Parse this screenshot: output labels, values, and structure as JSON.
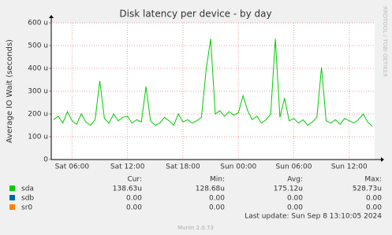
{
  "chart_data": {
    "type": "line",
    "title": "Disk latency per device - by day",
    "y_label": "Average IO Wait (seconds)",
    "side_text": "RRDTOOL / TOBI OETIKER",
    "categories": [
      null,
      null,
      null,
      null,
      "Sat 06:00",
      null,
      null,
      null,
      null,
      null,
      null,
      null,
      null,
      null,
      null,
      null,
      "Sat 12:00",
      null,
      null,
      null,
      null,
      null,
      null,
      null,
      null,
      null,
      null,
      null,
      "Sat 18:00",
      null,
      null,
      null,
      null,
      null,
      null,
      null,
      null,
      null,
      null,
      null,
      "Sun 00:00",
      null,
      null,
      null,
      null,
      null,
      null,
      null,
      null,
      null,
      null,
      null,
      "Sun 06:00",
      null,
      null,
      null,
      null,
      null,
      null,
      null,
      null,
      null,
      null,
      null,
      "Sun 12:00",
      null,
      null,
      null,
      null,
      null
    ],
    "series": [
      {
        "color": "#00cc00",
        "values": [
          175,
          190,
          160,
          210,
          170,
          155,
          200,
          165,
          150,
          175,
          345,
          180,
          160,
          200,
          170,
          185,
          190,
          160,
          175,
          165,
          320,
          170,
          150,
          160,
          185,
          170,
          150,
          200,
          165,
          175,
          160,
          170,
          185,
          390,
          530,
          200,
          215,
          190,
          210,
          195,
          205,
          280,
          215,
          175,
          190,
          160,
          175,
          200,
          530,
          185,
          270,
          170,
          180,
          160,
          175,
          150,
          165,
          185,
          405,
          170,
          160,
          175,
          155,
          180,
          170,
          160,
          175,
          200,
          165,
          145
        ]
      }
    ],
    "ylim": [
      0,
      600
    ],
    "yticks": [
      0,
      {
        "value": 100,
        "label": "100 u"
      },
      {
        "value": 200,
        "label": "200 u"
      },
      {
        "value": 300,
        "label": "300 u"
      },
      {
        "value": 400,
        "label": "400 u"
      },
      {
        "value": 500,
        "label": "500 u"
      },
      {
        "value": 600,
        "label": "600 u"
      }
    ],
    "grid": true,
    "legend_columns": [
      "Cur:",
      "Min:",
      "Avg:",
      "Max:"
    ],
    "legend": [
      {
        "name": "sda",
        "color": "#00cc00",
        "stats": [
          "138.63u",
          "128.68u",
          "175.12u",
          "528.73u"
        ]
      },
      {
        "name": "sdb",
        "color": "#0066b3",
        "stats": [
          "0.00",
          "0.00",
          "0.00",
          "0.00"
        ]
      },
      {
        "name": "sr0",
        "color": "#ff8000",
        "stats": [
          "0.00",
          "0.00",
          "0.00",
          "0.00"
        ]
      }
    ],
    "last_update": "Last update: Sun Sep  8 13:10:05 2024",
    "footer": "Munin 2.0.73"
  }
}
